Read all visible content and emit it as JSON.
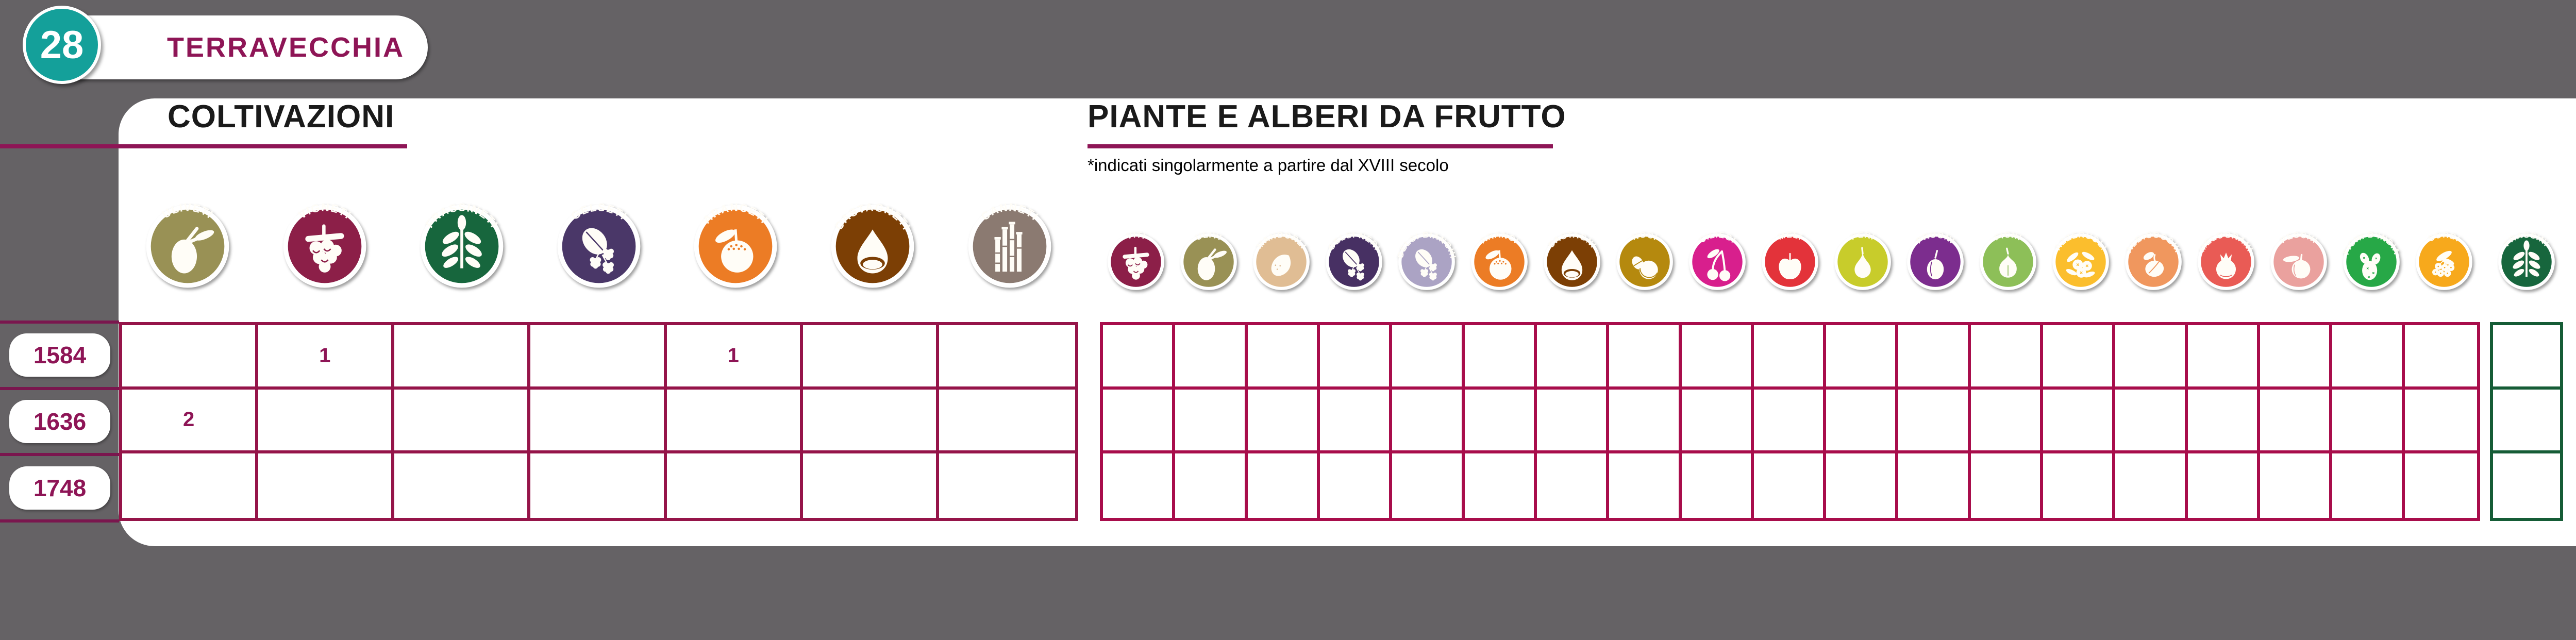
{
  "background_color": "#656265",
  "badge": {
    "number": "28",
    "name": "TERRAVECCHIA",
    "circle_color": "#14A09A",
    "text_color": "#8E1556"
  },
  "sections": {
    "coltivazioni": {
      "title": "COLTIVAZIONI",
      "underline_color": "#8E1556",
      "grid_color": "#951449"
    },
    "frutto": {
      "title": "PIANTE E ALBERI DA FRUTTO",
      "note": "*indicati singolarmente a partire dal XVIII secolo",
      "grid_color": "#A80D4B",
      "special_border_color": "#155C36"
    }
  },
  "years": [
    "1584",
    "1636",
    "1748"
  ],
  "coltivazioni": {
    "columns": [
      {
        "label": "ULIVETI",
        "color": "#999155",
        "glyph": "olive"
      },
      {
        "label": "VIGNETI",
        "color": "#8C1F48",
        "glyph": "grape"
      },
      {
        "label": "FRASSINETI",
        "color": "#17663D",
        "glyph": "ash"
      },
      {
        "label": "GELSETI",
        "color": "#4A3768",
        "glyph": "mulberry"
      },
      {
        "label": "ARANCETI",
        "color": "#EC7C25",
        "glyph": "orange"
      },
      {
        "label": "CASTAGNETI",
        "color": "#7C3F05",
        "glyph": "chestnut"
      },
      {
        "label": "CANNETI",
        "color": "#8B7A71",
        "glyph": "reeds"
      }
    ],
    "cells": {
      "1584": {
        "VIGNETI": "1",
        "ARANCETI": "1"
      },
      "1636": {
        "ULIVETI": "2"
      },
      "1748": {}
    }
  },
  "frutto": {
    "columns": [
      {
        "label": "VITI",
        "color": "#8C1F48",
        "glyph": "grape"
      },
      {
        "label": "ULIVI",
        "color": "#999155",
        "glyph": "olive"
      },
      {
        "label": "MANDORLI",
        "color": "#E0BD94",
        "glyph": "almond"
      },
      {
        "label": "GELSI NERI",
        "color": "#473063",
        "glyph": "mulberry"
      },
      {
        "label": "GELSI BIANCHI",
        "color": "#ABA3C4",
        "glyph": "mulberry"
      },
      {
        "label": "ARANCI",
        "color": "#EC7C25",
        "glyph": "orange"
      },
      {
        "label": "CASTAGNI",
        "color": "#7C3F05",
        "glyph": "chestnut"
      },
      {
        "label": "NOCI",
        "color": "#B5890E",
        "glyph": "walnut"
      },
      {
        "label": "CILIEGI",
        "color": "#D81F8D",
        "glyph": "cherry"
      },
      {
        "label": "MELI",
        "color": "#E3333A",
        "glyph": "apple"
      },
      {
        "label": "PERI",
        "color": "#C8CC2B",
        "glyph": "pear"
      },
      {
        "label": "PRUGNI",
        "color": "#7C2D8E",
        "glyph": "plum"
      },
      {
        "label": "FICHI",
        "color": "#8DBF58",
        "glyph": "fig"
      },
      {
        "label": "AZZERUOLI",
        "color": "#FBBE2D",
        "glyph": "berries"
      },
      {
        "label": "ALBICOCCHI",
        "color": "#F0975E",
        "glyph": "apricot"
      },
      {
        "label": "MELOGRANI",
        "color": "#E95B55",
        "glyph": "pomegranate"
      },
      {
        "label": "PESCHI",
        "color": "#EAA19E",
        "glyph": "peach"
      },
      {
        "label": "FICHI D'INDIA",
        "color": "#27A847",
        "glyph": "pricklypear"
      },
      {
        "label": "SORBI",
        "color": "#F7A91C",
        "glyph": "rowan"
      }
    ],
    "special_column": {
      "label": "FRASSINI",
      "color": "#17663D",
      "glyph": "ash"
    },
    "cells": {
      "1584": {},
      "1636": {},
      "1748": {}
    },
    "special_cells": [
      "",
      "",
      ""
    ]
  },
  "chart_data": {
    "type": "table",
    "title": "28 TERRAVECCHIA",
    "row_labels": [
      "1584",
      "1636",
      "1748"
    ],
    "sections": [
      {
        "name": "COLTIVAZIONI",
        "columns": [
          "ULIVETI",
          "VIGNETI",
          "FRASSINETI",
          "GELSETI",
          "ARANCETI",
          "CASTAGNETI",
          "CANNETI"
        ],
        "values": [
          [
            null,
            1,
            null,
            null,
            1,
            null,
            null
          ],
          [
            2,
            null,
            null,
            null,
            null,
            null,
            null
          ],
          [
            null,
            null,
            null,
            null,
            null,
            null,
            null
          ]
        ]
      },
      {
        "name": "PIANTE E ALBERI DA FRUTTO",
        "note": "*indicati singolarmente a partire dal XVIII secolo",
        "columns": [
          "VITI",
          "ULIVI",
          "MANDORLI",
          "GELSI NERI",
          "GELSI BIANCHI",
          "ARANCI",
          "CASTAGNI",
          "NOCI",
          "CILIEGI",
          "MELI",
          "PERI",
          "PRUGNI",
          "FICHI",
          "AZZERUOLI",
          "ALBICOCCHI",
          "MELOGRANI",
          "PESCHI",
          "FICHI D'INDIA",
          "SORBI",
          "FRASSINI"
        ],
        "values": [
          [
            null,
            null,
            null,
            null,
            null,
            null,
            null,
            null,
            null,
            null,
            null,
            null,
            null,
            null,
            null,
            null,
            null,
            null,
            null,
            null
          ],
          [
            null,
            null,
            null,
            null,
            null,
            null,
            null,
            null,
            null,
            null,
            null,
            null,
            null,
            null,
            null,
            null,
            null,
            null,
            null,
            null
          ],
          [
            null,
            null,
            null,
            null,
            null,
            null,
            null,
            null,
            null,
            null,
            null,
            null,
            null,
            null,
            null,
            null,
            null,
            null,
            null,
            null
          ]
        ]
      }
    ]
  }
}
